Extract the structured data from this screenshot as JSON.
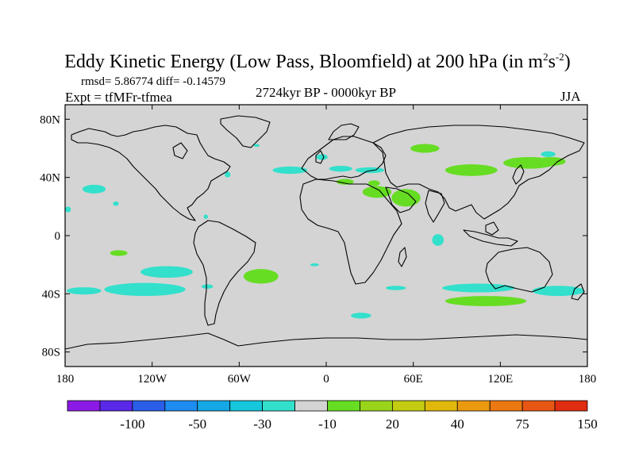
{
  "figure": {
    "title_main": "Eddy Kinetic Energy (Low Pass, Bloomfield) at 200 hPa (in m",
    "title_sup1": "2",
    "title_mid": "s",
    "title_sup2": "-2",
    "title_end": ")",
    "stats": "rmsd= 5.86774 diff= -0.14579",
    "expt": "Expt = tfMFr-tfmea",
    "period": "2724kyr BP - 0000kyr BP",
    "season": "JJA"
  },
  "colors": {
    "ocean_land_background": "#d4d4d4",
    "coastline": "#000000",
    "negative_anomaly": "#33e0cc",
    "positive_anomaly": "#66dd22"
  },
  "chart_data": {
    "type": "heatmap",
    "map": "global equirectangular, lon -180..180, lat -90..90",
    "x_axis": {
      "ticks": [
        -180,
        -120,
        -60,
        0,
        60,
        120,
        180
      ],
      "tick_labels": [
        "180",
        "120W",
        "60W",
        "0",
        "60E",
        "120E",
        "180"
      ]
    },
    "y_axis": {
      "ticks": [
        80,
        40,
        0,
        -40,
        -80
      ],
      "tick_labels": [
        "80N",
        "40N",
        "0",
        "40S",
        "80S"
      ]
    },
    "colorbar": {
      "colors": [
        "#8c1ae6",
        "#5a28e8",
        "#2a5ee8",
        "#1e8cf0",
        "#14a8e6",
        "#16c6dc",
        "#33e0cc",
        "#d4d4d4",
        "#66dd22",
        "#99d41a",
        "#c4cc12",
        "#e0b80c",
        "#eb9a10",
        "#ec7812",
        "#e85614",
        "#e02c10"
      ],
      "labels": [
        "-100",
        "-50",
        "-30",
        "-10",
        "20",
        "40",
        "75",
        "150"
      ]
    },
    "regions": [
      {
        "sign": "negative",
        "lon": -160,
        "lat": 32,
        "rx": 8,
        "ry": 3
      },
      {
        "sign": "negative",
        "lon": -145,
        "lat": 22,
        "rx": 2,
        "ry": 1.5
      },
      {
        "sign": "negative",
        "lon": -178,
        "lat": 18,
        "rx": 2,
        "ry": 2
      },
      {
        "sign": "negative",
        "lon": -68,
        "lat": 42,
        "rx": 2,
        "ry": 2
      },
      {
        "sign": "negative",
        "lon": -83,
        "lat": 13,
        "rx": 1.5,
        "ry": 1.5
      },
      {
        "sign": "negative",
        "lon": -3,
        "lat": 54,
        "rx": 4,
        "ry": 2
      },
      {
        "sign": "negative",
        "lon": -25,
        "lat": 45,
        "rx": 12,
        "ry": 2.5
      },
      {
        "sign": "negative",
        "lon": 10,
        "lat": 46,
        "rx": 8,
        "ry": 2
      },
      {
        "sign": "negative",
        "lon": 30,
        "lat": 45,
        "rx": 10,
        "ry": 2
      },
      {
        "sign": "negative",
        "lon": -48,
        "lat": 62,
        "rx": 2,
        "ry": 1
      },
      {
        "sign": "negative",
        "lon": -8,
        "lat": -20,
        "rx": 3,
        "ry": 1
      },
      {
        "sign": "negative",
        "lon": 77,
        "lat": -3,
        "rx": 4,
        "ry": 4
      },
      {
        "sign": "negative",
        "lon": -110,
        "lat": -25,
        "rx": 18,
        "ry": 4
      },
      {
        "sign": "negative",
        "lon": -125,
        "lat": -37,
        "rx": 28,
        "ry": 4.5
      },
      {
        "sign": "negative",
        "lon": -82,
        "lat": -35,
        "rx": 4,
        "ry": 1.5
      },
      {
        "sign": "negative",
        "lon": -167,
        "lat": -38,
        "rx": 12,
        "ry": 2.5
      },
      {
        "sign": "negative",
        "lon": 48,
        "lat": -36,
        "rx": 7,
        "ry": 1.5
      },
      {
        "sign": "negative",
        "lon": 105,
        "lat": -36,
        "rx": 25,
        "ry": 3
      },
      {
        "sign": "negative",
        "lon": 160,
        "lat": -38,
        "rx": 18,
        "ry": 3.5
      },
      {
        "sign": "negative",
        "lon": 195,
        "lat": -42,
        "rx": 10,
        "ry": 2.5
      },
      {
        "sign": "negative",
        "lon": 24,
        "lat": -55,
        "rx": 7,
        "ry": 2
      },
      {
        "sign": "negative",
        "lon": 153,
        "lat": 56,
        "rx": 5,
        "ry": 2
      },
      {
        "sign": "positive",
        "lon": -143,
        "lat": -12,
        "rx": 6,
        "ry": 2
      },
      {
        "sign": "positive",
        "lon": -45,
        "lat": -28,
        "rx": 12,
        "ry": 5
      },
      {
        "sign": "positive",
        "lon": 68,
        "lat": 60,
        "rx": 10,
        "ry": 3
      },
      {
        "sign": "positive",
        "lon": 100,
        "lat": 45,
        "rx": 18,
        "ry": 4
      },
      {
        "sign": "positive",
        "lon": 140,
        "lat": 50,
        "rx": 18,
        "ry": 4
      },
      {
        "sign": "positive",
        "lon": 155,
        "lat": 51,
        "rx": 10,
        "ry": 3
      },
      {
        "sign": "positive",
        "lon": 55,
        "lat": 26,
        "rx": 10,
        "ry": 6
      },
      {
        "sign": "positive",
        "lon": 35,
        "lat": 30,
        "rx": 10,
        "ry": 4
      },
      {
        "sign": "positive",
        "lon": 13,
        "lat": 37,
        "rx": 6,
        "ry": 2
      },
      {
        "sign": "positive",
        "lon": 33,
        "lat": 36,
        "rx": 4,
        "ry": 2
      },
      {
        "sign": "positive",
        "lon": 110,
        "lat": -45,
        "rx": 28,
        "ry": 3.5
      },
      {
        "sign": "positive",
        "lon": 193,
        "lat": 30,
        "rx": 4,
        "ry": 2
      }
    ]
  }
}
